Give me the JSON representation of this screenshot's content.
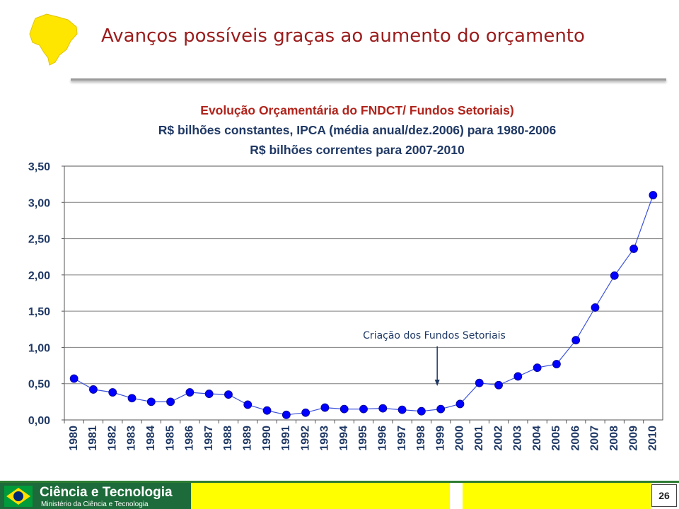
{
  "slide": {
    "title": "Avanços possíveis graças ao aumento do orçamento",
    "page_number": "26",
    "colors": {
      "title": "#9b1c1c",
      "chart_title": "#b0241c",
      "subtitle": "#1f3864",
      "series": "#0000ff",
      "footer_green": "#1d6b3a",
      "footer_yellow": "#ffff00"
    }
  },
  "footer": {
    "brand": "Ciência e Tecnologia",
    "ministry": "Ministério da Ciência e Tecnologia"
  },
  "chart_data": {
    "type": "line",
    "title": "Evolução Orçamentária do FNDCT/ Fundos Setoriais)",
    "subtitle_lines": [
      "R$ bilhões constantes, IPCA (média anual/dez.2006) para 1980-2006",
      "R$ bilhões correntes para 2007-2010"
    ],
    "xlabel": "",
    "ylabel": "",
    "x": [
      "1980",
      "1981",
      "1982",
      "1983",
      "1984",
      "1985",
      "1986",
      "1987",
      "1988",
      "1989",
      "1990",
      "1991",
      "1992",
      "1993",
      "1994",
      "1995",
      "1996",
      "1997",
      "1998",
      "1999",
      "2000",
      "2001",
      "2002",
      "2003",
      "2004",
      "2005",
      "2006",
      "2007",
      "2008",
      "2009",
      "2010"
    ],
    "series": [
      {
        "values": [
          0.57,
          0.42,
          0.38,
          0.3,
          0.25,
          0.25,
          0.38,
          0.36,
          0.35,
          0.21,
          0.13,
          0.07,
          0.1,
          0.17,
          0.15,
          0.15,
          0.16,
          0.14,
          0.12,
          0.15,
          0.22,
          0.51,
          0.48,
          0.6,
          0.72,
          0.77,
          1.1,
          1.55,
          1.99,
          2.36,
          3.1
        ]
      }
    ],
    "yticks": [
      "0,00",
      "0,50",
      "1,00",
      "1,50",
      "2,00",
      "2,50",
      "3,00",
      "3,50"
    ],
    "ylim": [
      0,
      3.5
    ],
    "grid": true,
    "annotation": {
      "text": "Criação dos Fundos Setoriais",
      "x": "1999"
    }
  }
}
